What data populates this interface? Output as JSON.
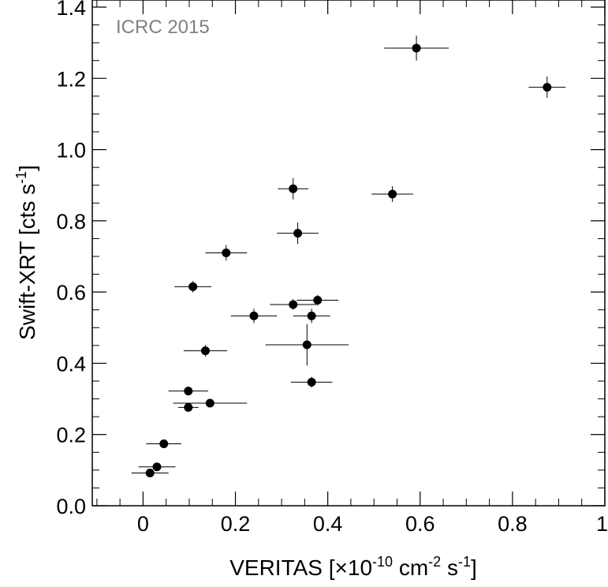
{
  "chart_data": {
    "type": "scatter",
    "annotation": "ICRC 2015",
    "annotation_color": "#808080",
    "marker_color": "#000000",
    "xlabel": {
      "main": "VERITAS [×10",
      "exp1": "-10",
      "mid1": " cm",
      "exp2": "-2",
      "mid2": " s",
      "exp3": "-1",
      "end": "]"
    },
    "ylabel": {
      "main": "Swift-XRT [cts s",
      "exp": "-1",
      "end": "]"
    },
    "xlim": [
      -0.11,
      1.0
    ],
    "ylim": [
      0.0,
      1.42
    ],
    "x_ticks": [
      {
        "value": 0,
        "label": "0"
      },
      {
        "value": 0.2,
        "label": "0.2"
      },
      {
        "value": 0.4,
        "label": "0.4"
      },
      {
        "value": 0.6,
        "label": "0.6"
      },
      {
        "value": 0.8,
        "label": "0.8"
      },
      {
        "value": 1.0,
        "label": "1"
      }
    ],
    "y_ticks": [
      {
        "value": 0.0,
        "label": "0.0"
      },
      {
        "value": 0.2,
        "label": "0.2"
      },
      {
        "value": 0.4,
        "label": "0.4"
      },
      {
        "value": 0.6,
        "label": "0.6"
      },
      {
        "value": 0.8,
        "label": "0.8"
      },
      {
        "value": 1.0,
        "label": "1.0"
      },
      {
        "value": 1.2,
        "label": "1.2"
      },
      {
        "value": 1.4,
        "label": "1.4"
      }
    ],
    "points": [
      {
        "x": 0.015,
        "y": 0.092,
        "xerr": 0.04,
        "yerr": 0.008
      },
      {
        "x": 0.03,
        "y": 0.109,
        "xerr": 0.04,
        "yerr": 0.008
      },
      {
        "x": 0.045,
        "y": 0.174,
        "xerr": 0.038,
        "yerr": 0.008
      },
      {
        "x": 0.098,
        "y": 0.276,
        "xerr": 0.022,
        "yerr": 0.012
      },
      {
        "x": 0.098,
        "y": 0.322,
        "xerr": 0.043,
        "yerr": 0.012
      },
      {
        "x": 0.145,
        "y": 0.288,
        "xerr": 0.08,
        "yerr": 0.01
      },
      {
        "x": 0.135,
        "y": 0.435,
        "xerr": 0.047,
        "yerr": 0.016
      },
      {
        "x": 0.108,
        "y": 0.615,
        "xerr": 0.04,
        "yerr": 0.016
      },
      {
        "x": 0.18,
        "y": 0.71,
        "xerr": 0.045,
        "yerr": 0.022
      },
      {
        "x": 0.24,
        "y": 0.533,
        "xerr": 0.05,
        "yerr": 0.02
      },
      {
        "x": 0.325,
        "y": 0.89,
        "xerr": 0.033,
        "yerr": 0.03
      },
      {
        "x": 0.335,
        "y": 0.765,
        "xerr": 0.045,
        "yerr": 0.03
      },
      {
        "x": 0.325,
        "y": 0.565,
        "xerr": 0.05,
        "yerr": 0.015
      },
      {
        "x": 0.378,
        "y": 0.577,
        "xerr": 0.045,
        "yerr": 0.015
      },
      {
        "x": 0.365,
        "y": 0.533,
        "xerr": 0.04,
        "yerr": 0.02
      },
      {
        "x": 0.355,
        "y": 0.452,
        "xerr": 0.09,
        "yerr": 0.058
      },
      {
        "x": 0.365,
        "y": 0.347,
        "xerr": 0.045,
        "yerr": 0.015
      },
      {
        "x": 0.54,
        "y": 0.875,
        "xerr": 0.045,
        "yerr": 0.022
      },
      {
        "x": 0.592,
        "y": 1.285,
        "xerr": 0.07,
        "yerr": 0.035
      },
      {
        "x": 0.875,
        "y": 1.175,
        "xerr": 0.04,
        "yerr": 0.03
      }
    ]
  }
}
